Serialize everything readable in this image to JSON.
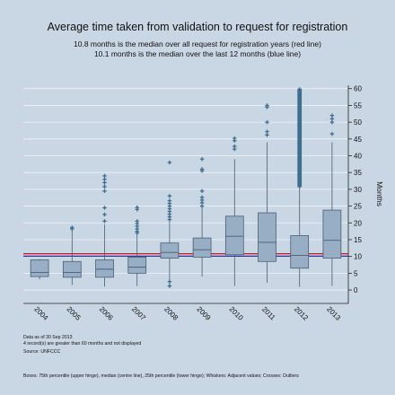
{
  "chart_data": {
    "type": "boxplot",
    "title": "Average time taken from validation to request for registration",
    "subtitle_lines": [
      "10.8 months is the median over all request for registration years (red line)",
      "10.1 months is the median over the last 12 months (blue line)"
    ],
    "ylabel": "Months",
    "ylim": [
      -4,
      61
    ],
    "yticks": [
      0,
      5,
      10,
      15,
      20,
      25,
      30,
      35,
      40,
      45,
      50,
      55,
      60
    ],
    "ytick_labels": [
      "0",
      "5",
      "10",
      "15",
      "20",
      "25",
      "30",
      "35",
      "40",
      "45",
      "50",
      "55",
      "60"
    ],
    "categories": [
      "2004",
      "2005",
      "2006",
      "2007",
      "2008",
      "2009",
      "2010",
      "2011",
      "2012",
      "2013"
    ],
    "boxes": [
      {
        "category": "2004",
        "whisker_low": 3.2,
        "q1": 4.0,
        "median": 5.2,
        "q3": 9.0,
        "whisker_high": 9.2,
        "outliers": []
      },
      {
        "category": "2005",
        "whisker_low": 1.5,
        "q1": 3.8,
        "median": 5.2,
        "q3": 8.5,
        "whisker_high": 17.8,
        "outliers": [
          18.2,
          18.6
        ]
      },
      {
        "category": "2006",
        "whisker_low": 1.0,
        "q1": 3.8,
        "median": 6.2,
        "q3": 9.0,
        "whisker_high": 19.5,
        "outliers": [
          20.5,
          22.5,
          24.5,
          29.5,
          30.8,
          32.0,
          33.0,
          34.0
        ]
      },
      {
        "category": "2007",
        "whisker_low": 1.2,
        "q1": 5.0,
        "median": 6.8,
        "q3": 9.8,
        "whisker_high": 16.5,
        "outliers": [
          17.0,
          17.5,
          18.2,
          19.0,
          19.8,
          20.5,
          24.0,
          24.6
        ]
      },
      {
        "category": "2008",
        "whisker_low": 1.2,
        "q1": 9.5,
        "median": 11.2,
        "q3": 14.0,
        "whisker_high": 20.5,
        "outliers": [
          1.2,
          2.5,
          21.0,
          21.8,
          22.6,
          23.4,
          24.2,
          25.0,
          25.8,
          26.6,
          28.0,
          38.0
        ]
      },
      {
        "category": "2009",
        "whisker_low": 4.0,
        "q1": 9.8,
        "median": 12.0,
        "q3": 15.5,
        "whisker_high": 24.5,
        "outliers": [
          25.0,
          26.0,
          26.8,
          27.6,
          29.5,
          35.5,
          36.0,
          39.0
        ]
      },
      {
        "category": "2010",
        "whisker_low": 1.2,
        "q1": 10.5,
        "median": 16.0,
        "q3": 22.0,
        "whisker_high": 39.0,
        "outliers": [
          42.0,
          42.8,
          44.5,
          45.2
        ]
      },
      {
        "category": "2011",
        "whisker_low": 2.2,
        "q1": 8.5,
        "median": 14.2,
        "q3": 23.0,
        "whisker_high": 44.0,
        "outliers": [
          46.2,
          47.2,
          50.0,
          54.5,
          55.0
        ]
      },
      {
        "category": "2012",
        "whisker_low": 1.0,
        "q1": 6.5,
        "median": 10.3,
        "q3": 16.2,
        "whisker_high": 30.5,
        "outliers_dense_range": [
          30.8,
          60.0
        ]
      },
      {
        "category": "2013",
        "whisker_low": 1.2,
        "q1": 9.5,
        "median": 14.8,
        "q3": 23.8,
        "whisker_high": 44.0,
        "outliers": [
          46.5,
          50.0,
          51.0,
          52.0
        ]
      }
    ],
    "reference_lines": [
      {
        "value": 10.8,
        "color": "#cc0000"
      },
      {
        "value": 10.1,
        "color": "#1a1a99"
      }
    ],
    "notes": [
      "Data as of 30 Sep 2013",
      "4 record(s) are greater than 60 months and not displayed",
      "Source: UNFCCC"
    ],
    "footer": "Boxes: 75th percentile (upper hinge), median (centre line), 25th percentile (lower hinge); Whiskers: Adjacent values; Crosses: Outliers",
    "grid": true,
    "colors": {
      "background": "#c9d6e3",
      "plot_background": "#c9d6e3",
      "gridline": "#eef3f8",
      "box_fill": "#97aec4",
      "box_stroke": "#4a5f72",
      "outlier": "#3f6f8f"
    }
  }
}
